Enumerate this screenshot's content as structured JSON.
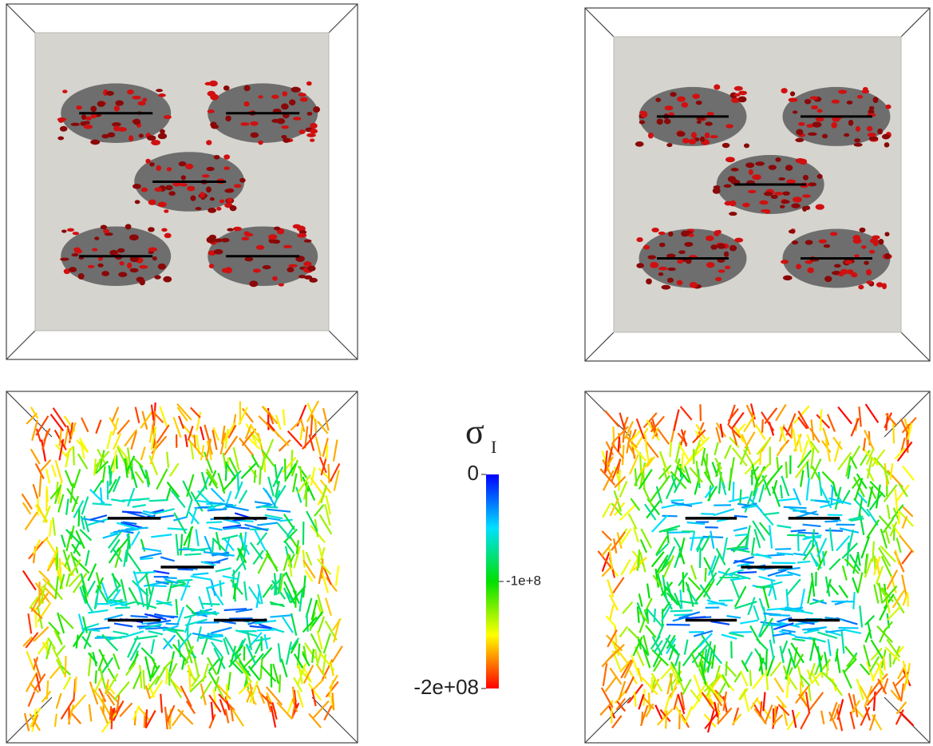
{
  "colorbar": {
    "title": "σ",
    "subscript": "I",
    "range": [
      -200000000,
      0
    ],
    "ticks": [
      0,
      {
        "value": -100000000,
        "label": "-1e+8"
      },
      {
        "value": -200000000,
        "label": "-2e+08"
      }
    ]
  }
}
